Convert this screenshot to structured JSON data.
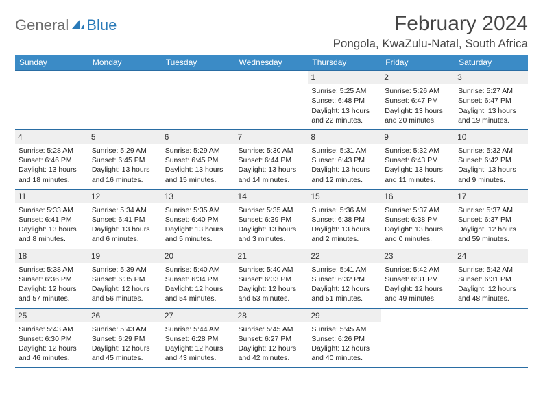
{
  "logo": {
    "text1": "General",
    "text2": "Blue"
  },
  "title": "February 2024",
  "location": "Pongola, KwaZulu-Natal, South Africa",
  "colors": {
    "header_bg": "#3b8bc6",
    "header_text": "#ffffff",
    "border": "#2a6da3",
    "daynum_bg": "#efefef",
    "logo_gray": "#6b6b6b",
    "logo_blue": "#2a7ab8"
  },
  "day_headers": [
    "Sunday",
    "Monday",
    "Tuesday",
    "Wednesday",
    "Thursday",
    "Friday",
    "Saturday"
  ],
  "weeks": [
    [
      {
        "empty": true
      },
      {
        "empty": true
      },
      {
        "empty": true
      },
      {
        "empty": true
      },
      {
        "n": "1",
        "sr": "Sunrise: 5:25 AM",
        "ss": "Sunset: 6:48 PM",
        "d1": "Daylight: 13 hours",
        "d2": "and 22 minutes."
      },
      {
        "n": "2",
        "sr": "Sunrise: 5:26 AM",
        "ss": "Sunset: 6:47 PM",
        "d1": "Daylight: 13 hours",
        "d2": "and 20 minutes."
      },
      {
        "n": "3",
        "sr": "Sunrise: 5:27 AM",
        "ss": "Sunset: 6:47 PM",
        "d1": "Daylight: 13 hours",
        "d2": "and 19 minutes."
      }
    ],
    [
      {
        "n": "4",
        "sr": "Sunrise: 5:28 AM",
        "ss": "Sunset: 6:46 PM",
        "d1": "Daylight: 13 hours",
        "d2": "and 18 minutes."
      },
      {
        "n": "5",
        "sr": "Sunrise: 5:29 AM",
        "ss": "Sunset: 6:45 PM",
        "d1": "Daylight: 13 hours",
        "d2": "and 16 minutes."
      },
      {
        "n": "6",
        "sr": "Sunrise: 5:29 AM",
        "ss": "Sunset: 6:45 PM",
        "d1": "Daylight: 13 hours",
        "d2": "and 15 minutes."
      },
      {
        "n": "7",
        "sr": "Sunrise: 5:30 AM",
        "ss": "Sunset: 6:44 PM",
        "d1": "Daylight: 13 hours",
        "d2": "and 14 minutes."
      },
      {
        "n": "8",
        "sr": "Sunrise: 5:31 AM",
        "ss": "Sunset: 6:43 PM",
        "d1": "Daylight: 13 hours",
        "d2": "and 12 minutes."
      },
      {
        "n": "9",
        "sr": "Sunrise: 5:32 AM",
        "ss": "Sunset: 6:43 PM",
        "d1": "Daylight: 13 hours",
        "d2": "and 11 minutes."
      },
      {
        "n": "10",
        "sr": "Sunrise: 5:32 AM",
        "ss": "Sunset: 6:42 PM",
        "d1": "Daylight: 13 hours",
        "d2": "and 9 minutes."
      }
    ],
    [
      {
        "n": "11",
        "sr": "Sunrise: 5:33 AM",
        "ss": "Sunset: 6:41 PM",
        "d1": "Daylight: 13 hours",
        "d2": "and 8 minutes."
      },
      {
        "n": "12",
        "sr": "Sunrise: 5:34 AM",
        "ss": "Sunset: 6:41 PM",
        "d1": "Daylight: 13 hours",
        "d2": "and 6 minutes."
      },
      {
        "n": "13",
        "sr": "Sunrise: 5:35 AM",
        "ss": "Sunset: 6:40 PM",
        "d1": "Daylight: 13 hours",
        "d2": "and 5 minutes."
      },
      {
        "n": "14",
        "sr": "Sunrise: 5:35 AM",
        "ss": "Sunset: 6:39 PM",
        "d1": "Daylight: 13 hours",
        "d2": "and 3 minutes."
      },
      {
        "n": "15",
        "sr": "Sunrise: 5:36 AM",
        "ss": "Sunset: 6:38 PM",
        "d1": "Daylight: 13 hours",
        "d2": "and 2 minutes."
      },
      {
        "n": "16",
        "sr": "Sunrise: 5:37 AM",
        "ss": "Sunset: 6:38 PM",
        "d1": "Daylight: 13 hours",
        "d2": "and 0 minutes."
      },
      {
        "n": "17",
        "sr": "Sunrise: 5:37 AM",
        "ss": "Sunset: 6:37 PM",
        "d1": "Daylight: 12 hours",
        "d2": "and 59 minutes."
      }
    ],
    [
      {
        "n": "18",
        "sr": "Sunrise: 5:38 AM",
        "ss": "Sunset: 6:36 PM",
        "d1": "Daylight: 12 hours",
        "d2": "and 57 minutes."
      },
      {
        "n": "19",
        "sr": "Sunrise: 5:39 AM",
        "ss": "Sunset: 6:35 PM",
        "d1": "Daylight: 12 hours",
        "d2": "and 56 minutes."
      },
      {
        "n": "20",
        "sr": "Sunrise: 5:40 AM",
        "ss": "Sunset: 6:34 PM",
        "d1": "Daylight: 12 hours",
        "d2": "and 54 minutes."
      },
      {
        "n": "21",
        "sr": "Sunrise: 5:40 AM",
        "ss": "Sunset: 6:33 PM",
        "d1": "Daylight: 12 hours",
        "d2": "and 53 minutes."
      },
      {
        "n": "22",
        "sr": "Sunrise: 5:41 AM",
        "ss": "Sunset: 6:32 PM",
        "d1": "Daylight: 12 hours",
        "d2": "and 51 minutes."
      },
      {
        "n": "23",
        "sr": "Sunrise: 5:42 AM",
        "ss": "Sunset: 6:31 PM",
        "d1": "Daylight: 12 hours",
        "d2": "and 49 minutes."
      },
      {
        "n": "24",
        "sr": "Sunrise: 5:42 AM",
        "ss": "Sunset: 6:31 PM",
        "d1": "Daylight: 12 hours",
        "d2": "and 48 minutes."
      }
    ],
    [
      {
        "n": "25",
        "sr": "Sunrise: 5:43 AM",
        "ss": "Sunset: 6:30 PM",
        "d1": "Daylight: 12 hours",
        "d2": "and 46 minutes."
      },
      {
        "n": "26",
        "sr": "Sunrise: 5:43 AM",
        "ss": "Sunset: 6:29 PM",
        "d1": "Daylight: 12 hours",
        "d2": "and 45 minutes."
      },
      {
        "n": "27",
        "sr": "Sunrise: 5:44 AM",
        "ss": "Sunset: 6:28 PM",
        "d1": "Daylight: 12 hours",
        "d2": "and 43 minutes."
      },
      {
        "n": "28",
        "sr": "Sunrise: 5:45 AM",
        "ss": "Sunset: 6:27 PM",
        "d1": "Daylight: 12 hours",
        "d2": "and 42 minutes."
      },
      {
        "n": "29",
        "sr": "Sunrise: 5:45 AM",
        "ss": "Sunset: 6:26 PM",
        "d1": "Daylight: 12 hours",
        "d2": "and 40 minutes."
      },
      {
        "empty": true
      },
      {
        "empty": true
      }
    ]
  ]
}
